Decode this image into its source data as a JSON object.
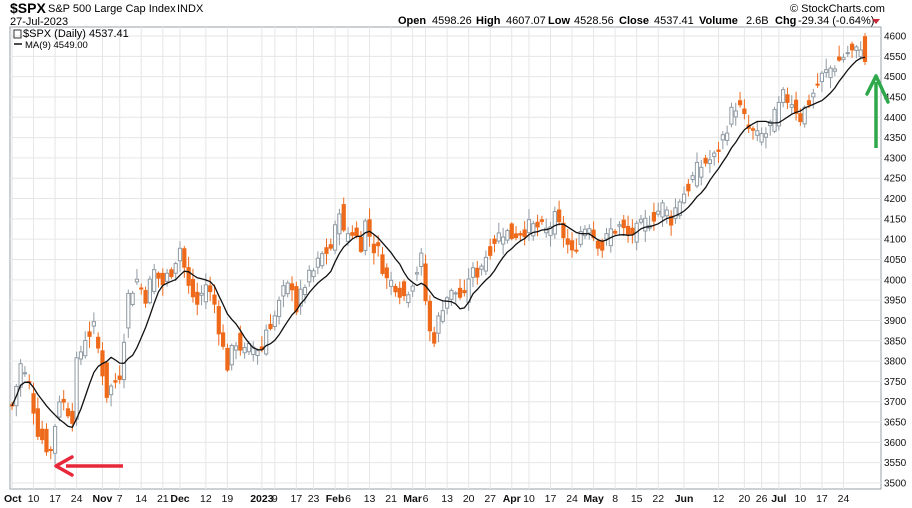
{
  "header": {
    "symbol": "$SPX",
    "name": "S&P 500 Large Cap Index",
    "exchange": "INDX",
    "date": "27-Jul-2023",
    "watermark": "© StockCharts.com",
    "open_label": "Open",
    "open": "4598.26",
    "high_label": "High",
    "high": "4607.07",
    "low_label": "Low",
    "low": "4528.56",
    "close_label": "Close",
    "close": "4537.41",
    "volume_label": "Volume",
    "volume": "2.6B",
    "chg_label": "Chg",
    "chg": "-29.34 (-0.64%)"
  },
  "legend": {
    "price_entry": "$SPX (Daily) 4537.41",
    "ma_entry": "MA(9) 4549.00"
  },
  "colors": {
    "up": "#8f9aa3",
    "down": "#ee6a1a",
    "ma": "#111111",
    "grid": "#e6e6e6",
    "arrow_down_marker": "#e8283a",
    "arrow_up_marker": "#2ea84a"
  },
  "chart_data": {
    "type": "candlestick",
    "title": "$SPX S&P 500 Large Cap Index INDX",
    "ylim": [
      3490,
      4620
    ],
    "y_ticks": [
      3500,
      3550,
      3600,
      3650,
      3700,
      3750,
      3800,
      3850,
      3900,
      3950,
      4000,
      4050,
      4100,
      4150,
      4200,
      4250,
      4300,
      4350,
      4400,
      4450,
      4500,
      4550,
      4600
    ],
    "x_ticks": [
      {
        "label": "Oct",
        "bold": true,
        "index": 0
      },
      {
        "label": "10",
        "bold": false,
        "index": 5
      },
      {
        "label": "17",
        "bold": false,
        "index": 10
      },
      {
        "label": "24",
        "bold": false,
        "index": 15
      },
      {
        "label": "Nov",
        "bold": true,
        "index": 21
      },
      {
        "label": "7",
        "bold": false,
        "index": 25
      },
      {
        "label": "14",
        "bold": false,
        "index": 30
      },
      {
        "label": "21",
        "bold": false,
        "index": 35
      },
      {
        "label": "Dec",
        "bold": true,
        "index": 39
      },
      {
        "label": "12",
        "bold": false,
        "index": 45
      },
      {
        "label": "19",
        "bold": false,
        "index": 50
      },
      {
        "label": "2023",
        "bold": true,
        "index": 58
      },
      {
        "label": "9",
        "bold": false,
        "index": 61
      },
      {
        "label": "17",
        "bold": false,
        "index": 66
      },
      {
        "label": "23",
        "bold": false,
        "index": 70
      },
      {
        "label": "Feb",
        "bold": true,
        "index": 75
      },
      {
        "label": "6",
        "bold": false,
        "index": 78
      },
      {
        "label": "13",
        "bold": false,
        "index": 83
      },
      {
        "label": "21",
        "bold": false,
        "index": 88
      },
      {
        "label": "Mar",
        "bold": true,
        "index": 93
      },
      {
        "label": "6",
        "bold": false,
        "index": 96
      },
      {
        "label": "13",
        "bold": false,
        "index": 101
      },
      {
        "label": "20",
        "bold": false,
        "index": 106
      },
      {
        "label": "27",
        "bold": false,
        "index": 111
      },
      {
        "label": "Apr",
        "bold": true,
        "index": 116
      },
      {
        "label": "10",
        "bold": false,
        "index": 120
      },
      {
        "label": "17",
        "bold": false,
        "index": 125
      },
      {
        "label": "24",
        "bold": false,
        "index": 130
      },
      {
        "label": "May",
        "bold": true,
        "index": 135
      },
      {
        "label": "8",
        "bold": false,
        "index": 140
      },
      {
        "label": "15",
        "bold": false,
        "index": 145
      },
      {
        "label": "22",
        "bold": false,
        "index": 150
      },
      {
        "label": "Jun",
        "bold": true,
        "index": 156
      },
      {
        "label": "12",
        "bold": false,
        "index": 164
      },
      {
        "label": "20",
        "bold": false,
        "index": 170
      },
      {
        "label": "26",
        "bold": false,
        "index": 174
      },
      {
        "label": "Jul",
        "bold": true,
        "index": 178
      },
      {
        "label": "10",
        "bold": false,
        "index": 183
      },
      {
        "label": "17",
        "bold": false,
        "index": 188
      },
      {
        "label": "24",
        "bold": false,
        "index": 193
      }
    ],
    "anchors": [
      [
        0,
        3690
      ],
      [
        2,
        3790
      ],
      [
        4,
        3740
      ],
      [
        6,
        3630
      ],
      [
        8,
        3590
      ],
      [
        9,
        3580
      ],
      [
        11,
        3710
      ],
      [
        14,
        3665
      ],
      [
        15,
        3790
      ],
      [
        17,
        3860
      ],
      [
        19,
        3880
      ],
      [
        20,
        3830
      ],
      [
        22,
        3720
      ],
      [
        24,
        3750
      ],
      [
        25,
        3770
      ],
      [
        27,
        3960
      ],
      [
        29,
        4000
      ],
      [
        31,
        3960
      ],
      [
        33,
        4020
      ],
      [
        35,
        3990
      ],
      [
        37,
        4025
      ],
      [
        39,
        4080
      ],
      [
        41,
        3980
      ],
      [
        43,
        3940
      ],
      [
        45,
        3990
      ],
      [
        47,
        3940
      ],
      [
        49,
        3830
      ],
      [
        50,
        3790
      ],
      [
        52,
        3850
      ],
      [
        54,
        3820
      ],
      [
        56,
        3835
      ],
      [
        58,
        3830
      ],
      [
        59,
        3880
      ],
      [
        61,
        3910
      ],
      [
        63,
        3970
      ],
      [
        65,
        3990
      ],
      [
        66,
        3930
      ],
      [
        68,
        3990
      ],
      [
        70,
        4020
      ],
      [
        72,
        4060
      ],
      [
        74,
        4080
      ],
      [
        75,
        4120
      ],
      [
        76,
        4180
      ],
      [
        77,
        4110
      ],
      [
        79,
        4120
      ],
      [
        81,
        4090
      ],
      [
        82,
        4140
      ],
      [
        84,
        4080
      ],
      [
        85,
        4070
      ],
      [
        87,
        4000
      ],
      [
        89,
        3990
      ],
      [
        91,
        3960
      ],
      [
        93,
        4000
      ],
      [
        95,
        4050
      ],
      [
        96,
        3950
      ],
      [
        97,
        3870
      ],
      [
        98,
        3860
      ],
      [
        99,
        3900
      ],
      [
        100,
        3940
      ],
      [
        101,
        3960
      ],
      [
        103,
        3970
      ],
      [
        105,
        3950
      ],
      [
        106,
        4010
      ],
      [
        108,
        4020
      ],
      [
        110,
        4060
      ],
      [
        112,
        4100
      ],
      [
        114,
        4120
      ],
      [
        116,
        4110
      ],
      [
        118,
        4120
      ],
      [
        120,
        4130
      ],
      [
        122,
        4130
      ],
      [
        124,
        4120
      ],
      [
        126,
        4150
      ],
      [
        128,
        4110
      ],
      [
        130,
        4060
      ],
      [
        132,
        4120
      ],
      [
        134,
        4140
      ],
      [
        135,
        4110
      ],
      [
        137,
        4080
      ],
      [
        139,
        4120
      ],
      [
        141,
        4130
      ],
      [
        143,
        4110
      ],
      [
        145,
        4120
      ],
      [
        147,
        4140
      ],
      [
        149,
        4160
      ],
      [
        151,
        4180
      ],
      [
        153,
        4150
      ],
      [
        155,
        4200
      ],
      [
        157,
        4230
      ],
      [
        159,
        4270
      ],
      [
        161,
        4290
      ],
      [
        163,
        4300
      ],
      [
        165,
        4350
      ],
      [
        167,
        4410
      ],
      [
        168,
        4430
      ],
      [
        169,
        4420
      ],
      [
        171,
        4370
      ],
      [
        173,
        4350
      ],
      [
        175,
        4360
      ],
      [
        177,
        4400
      ],
      [
        179,
        4450
      ],
      [
        181,
        4440
      ],
      [
        183,
        4400
      ],
      [
        184,
        4420
      ],
      [
        186,
        4460
      ],
      [
        188,
        4500
      ],
      [
        190,
        4520
      ],
      [
        192,
        4540
      ],
      [
        194,
        4560
      ],
      [
        196,
        4560
      ],
      [
        197,
        4580
      ],
      [
        198,
        4537
      ]
    ],
    "last_bar": {
      "open": 4598.26,
      "high": 4607.07,
      "low": 4528.56,
      "close": 4537.41
    },
    "moving_average": {
      "name": "MA(9)",
      "period": 9,
      "last": 4549.0
    }
  }
}
